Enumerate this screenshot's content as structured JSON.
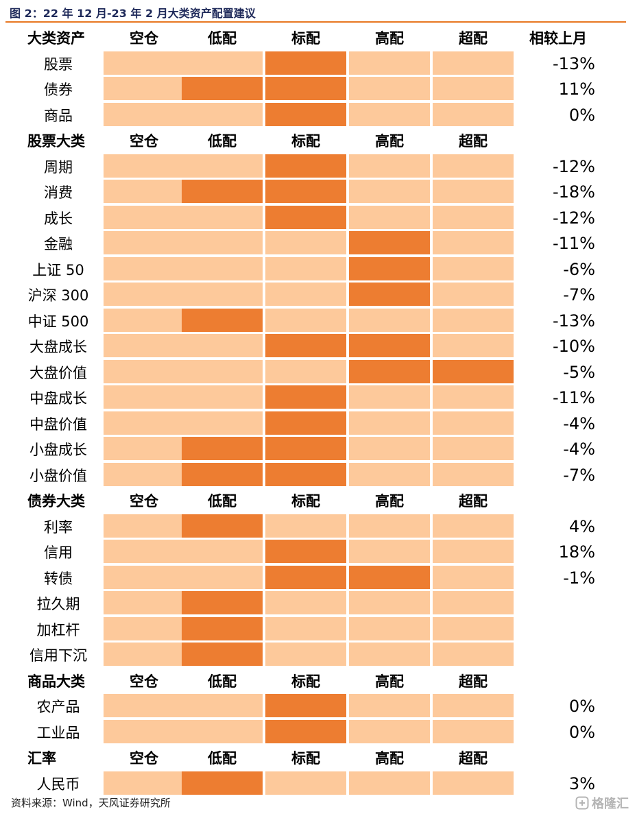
{
  "title": "图 2：22 年 12 月-23 年 2 月大类资产配置建议",
  "source": "资料来源：Wind，天风证券研究所",
  "watermark": "格隆汇",
  "colors": {
    "highlight": "#ed7d31",
    "base": "#fdc99b",
    "rule": "#e87722"
  },
  "chart_data": {
    "type": "table",
    "columns": [
      "空仓",
      "低配",
      "标配",
      "高配",
      "超配"
    ],
    "change_header": "相较上月",
    "sections": [
      {
        "header": "大类资产",
        "rows": [
          {
            "name": "股票",
            "levels": [
              "标配"
            ],
            "change": "-13%"
          },
          {
            "name": "债券",
            "levels": [
              "低配",
              "标配"
            ],
            "change": "11%"
          },
          {
            "name": "商品",
            "levels": [
              "标配"
            ],
            "change": "0%"
          }
        ]
      },
      {
        "header": "股票大类",
        "rows": [
          {
            "name": "周期",
            "levels": [
              "标配"
            ],
            "change": "-12%"
          },
          {
            "name": "消费",
            "levels": [
              "低配",
              "标配"
            ],
            "change": "-18%"
          },
          {
            "name": "成长",
            "levels": [
              "标配"
            ],
            "change": "-12%"
          },
          {
            "name": "金融",
            "levels": [
              "高配"
            ],
            "change": "-11%"
          },
          {
            "name": "上证 50",
            "levels": [
              "高配"
            ],
            "change": "-6%"
          },
          {
            "name": "沪深 300",
            "levels": [
              "高配"
            ],
            "change": "-7%"
          },
          {
            "name": "中证 500",
            "levels": [
              "低配"
            ],
            "change": "-13%"
          },
          {
            "name": "大盘成长",
            "levels": [
              "标配",
              "高配"
            ],
            "change": "-10%"
          },
          {
            "name": "大盘价值",
            "levels": [
              "高配",
              "超配"
            ],
            "change": "-5%"
          },
          {
            "name": "中盘成长",
            "levels": [
              "标配"
            ],
            "change": "-11%"
          },
          {
            "name": "中盘价值",
            "levels": [
              "标配"
            ],
            "change": "-4%"
          },
          {
            "name": "小盘成长",
            "levels": [
              "低配",
              "标配"
            ],
            "change": "-4%"
          },
          {
            "name": "小盘价值",
            "levels": [
              "低配",
              "标配"
            ],
            "change": "-7%"
          }
        ]
      },
      {
        "header": "债券大类",
        "rows": [
          {
            "name": "利率",
            "levels": [
              "低配"
            ],
            "change": "4%"
          },
          {
            "name": "信用",
            "levels": [
              "标配"
            ],
            "change": "18%"
          },
          {
            "name": "转债",
            "levels": [
              "标配",
              "高配"
            ],
            "change": "-1%"
          },
          {
            "name": "拉久期",
            "levels": [
              "低配"
            ],
            "change": ""
          },
          {
            "name": "加杠杆",
            "levels": [
              "低配"
            ],
            "change": ""
          },
          {
            "name": "信用下沉",
            "levels": [
              "低配"
            ],
            "change": ""
          }
        ]
      },
      {
        "header": "商品大类",
        "rows": [
          {
            "name": "农产品",
            "levels": [
              "标配"
            ],
            "change": "0%"
          },
          {
            "name": "工业品",
            "levels": [
              "标配"
            ],
            "change": "0%"
          }
        ]
      },
      {
        "header": "汇率",
        "rows": [
          {
            "name": "人民币",
            "levels": [
              "低配"
            ],
            "change": "3%"
          }
        ]
      }
    ]
  }
}
